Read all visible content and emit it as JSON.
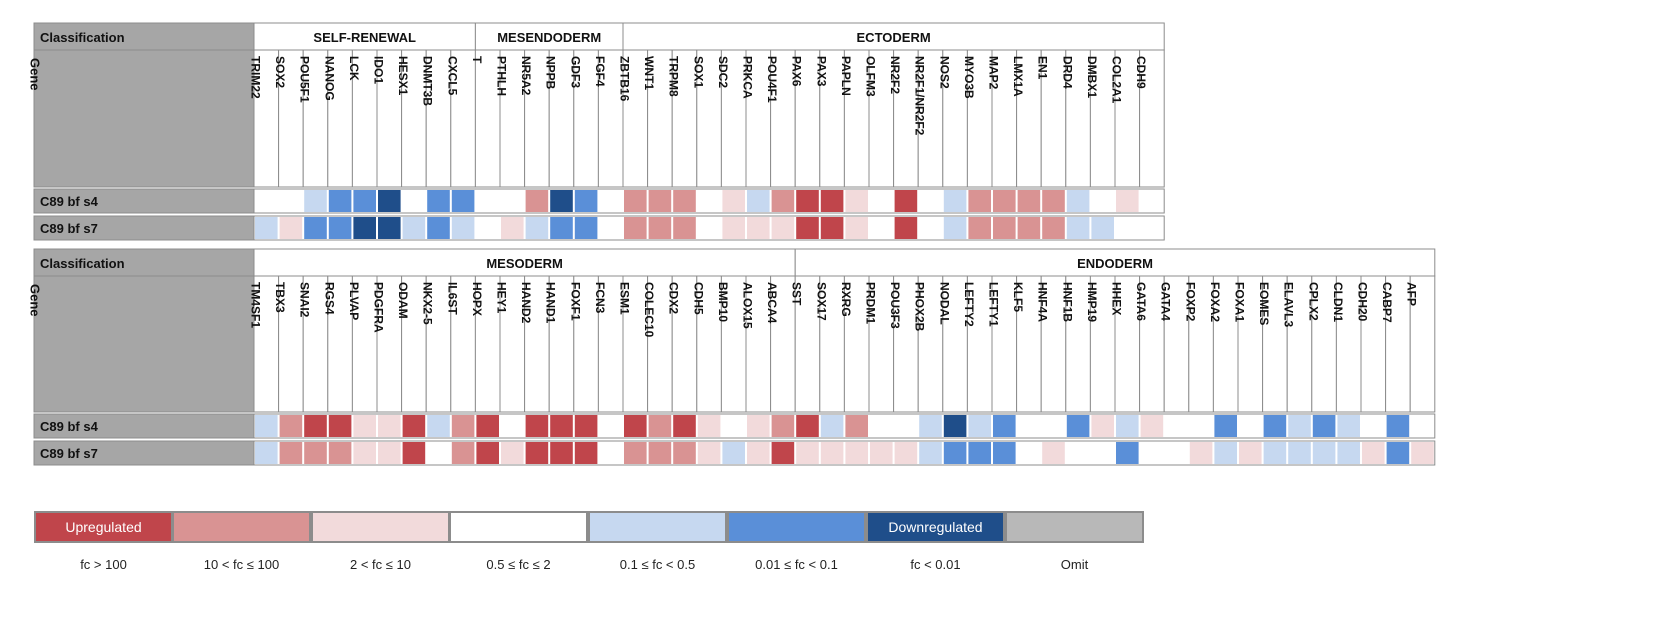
{
  "colors": {
    "up_strong": "#c0454b",
    "up_mid": "#d99393",
    "up_weak": "#f2dadb",
    "neutral": "#ffffff",
    "down_weak": "#c6d8f0",
    "down_mid": "#5a8fd8",
    "down_strong": "#1f4e8a",
    "omit": "#b8b8b8",
    "header_bg": "#a6a6a6",
    "border": "#8c8c8c"
  },
  "chart_data": {
    "type": "heatmap",
    "row_header_labels": {
      "classification": "Classification",
      "gene": "Gene"
    },
    "samples": [
      "C89 bf s4",
      "C89 bf s7"
    ],
    "level_key": {
      "3": "fc > 100",
      "2": "10 < fc ≤ 100",
      "1": "2 < fc ≤ 10",
      "0": "0.5 ≤ fc ≤ 2",
      "-1": "0.1 ≤ fc < 0.5",
      "-2": "0.01 ≤ fc < 0.1",
      "-3": "fc < 0.01"
    },
    "panels": [
      {
        "groups": [
          {
            "name": "SELF-RENEWAL",
            "genes": [
              "TRIM22",
              "SOX2",
              "POU5F1",
              "NANOG",
              "LCK",
              "IDO1",
              "HESX1",
              "DNMT3B",
              "CXCL5"
            ]
          },
          {
            "name": "MESENDODERM",
            "genes": [
              "T",
              "PTHLH",
              "NR5A2",
              "NPPB",
              "GDF3",
              "FGF4"
            ]
          },
          {
            "name": "ECTODERM",
            "genes": [
              "ZBTB16",
              "WNT1",
              "TRPM8",
              "SOX1",
              "SDC2",
              "PRKCA",
              "POU4F1",
              "PAX6",
              "PAX3",
              "PAPLN",
              "OLFM3",
              "NR2F2",
              "NR2F1/NR2F2",
              "NOS2",
              "MYO3B",
              "MAP2",
              "LMX1A",
              "EN1",
              "DRD4",
              "DMBX1",
              "COL2A1",
              "CDH9"
            ]
          }
        ],
        "values": [
          [
            0,
            0,
            -1,
            -2,
            -2,
            -3,
            0,
            -2,
            -2,
            0,
            0,
            2,
            -3,
            -2,
            0,
            2,
            2,
            2,
            0,
            1,
            -1,
            2,
            3,
            3,
            1,
            0,
            3,
            0,
            -1,
            2,
            2,
            2,
            2,
            -1,
            0,
            1,
            0
          ],
          [
            -1,
            1,
            -2,
            -2,
            -3,
            -3,
            -1,
            -2,
            -1,
            0,
            1,
            -1,
            -2,
            -2,
            0,
            2,
            2,
            2,
            0,
            1,
            1,
            1,
            3,
            3,
            1,
            0,
            3,
            0,
            -1,
            2,
            2,
            2,
            2,
            -1,
            -1,
            0,
            0
          ]
        ]
      },
      {
        "groups": [
          {
            "name": "MESODERM",
            "genes": [
              "TM4SF1",
              "TBX3",
              "SNAI2",
              "RGS4",
              "PLVAP",
              "PDGFRA",
              "ODAM",
              "NKX2-5",
              "IL6ST",
              "HOPX",
              "HEY1",
              "HAND2",
              "HAND1",
              "FOXF1",
              "FCN3",
              "ESM1",
              "COLEC10",
              "CDX2",
              "CDH5",
              "BMP10",
              "ALOX15",
              "ABCA4"
            ]
          },
          {
            "name": "ENDODERM",
            "genes": [
              "SST",
              "SOX17",
              "RXRG",
              "PRDM1",
              "POU3F3",
              "PHOX2B",
              "NODAL",
              "LEFTY2",
              "LEFTY1",
              "KLF5",
              "HNF4A",
              "HNF1B",
              "HMP19",
              "HHEX",
              "GATA6",
              "GATA4",
              "FOXP2",
              "FOXA2",
              "FOXA1",
              "EOMES",
              "ELAVL3",
              "CPLX2",
              "CLDN1",
              "CDH20",
              "CABP7",
              "AFP"
            ]
          }
        ],
        "values": [
          [
            -1,
            2,
            3,
            3,
            1,
            1,
            3,
            -1,
            2,
            3,
            0,
            3,
            3,
            3,
            0,
            3,
            2,
            3,
            1,
            0,
            1,
            2,
            3,
            -1,
            2,
            0,
            0,
            -1,
            -3,
            -1,
            -2,
            0,
            0,
            -2,
            1,
            -1,
            1,
            0,
            0,
            -2,
            0,
            -2,
            -1,
            -2,
            -1,
            0,
            -2,
            0
          ],
          [
            -1,
            2,
            2,
            2,
            1,
            1,
            3,
            0,
            2,
            3,
            1,
            3,
            3,
            3,
            0,
            2,
            2,
            2,
            1,
            -1,
            1,
            3,
            1,
            1,
            1,
            1,
            1,
            -1,
            -2,
            -2,
            -2,
            0,
            1,
            0,
            0,
            -2,
            0,
            0,
            1,
            -1,
            1,
            -1,
            -1,
            -1,
            -1,
            1,
            -2,
            1
          ]
        ]
      }
    ],
    "legend": [
      {
        "level": 3,
        "label": "fc > 100",
        "swatch_text": "Upregulated"
      },
      {
        "level": 2,
        "label": "10 < fc ≤ 100",
        "swatch_text": ""
      },
      {
        "level": 1,
        "label": "2 < fc ≤ 10",
        "swatch_text": ""
      },
      {
        "level": 0,
        "label": "0.5 ≤ fc ≤ 2",
        "swatch_text": ""
      },
      {
        "level": -1,
        "label": "0.1 ≤ fc < 0.5",
        "swatch_text": ""
      },
      {
        "level": -2,
        "label": "0.01 ≤ fc < 0.1",
        "swatch_text": ""
      },
      {
        "level": -3,
        "label": "fc < 0.01",
        "swatch_text": "Downregulated"
      },
      {
        "level": "omit",
        "label": "Omit",
        "swatch_text": ""
      }
    ]
  }
}
